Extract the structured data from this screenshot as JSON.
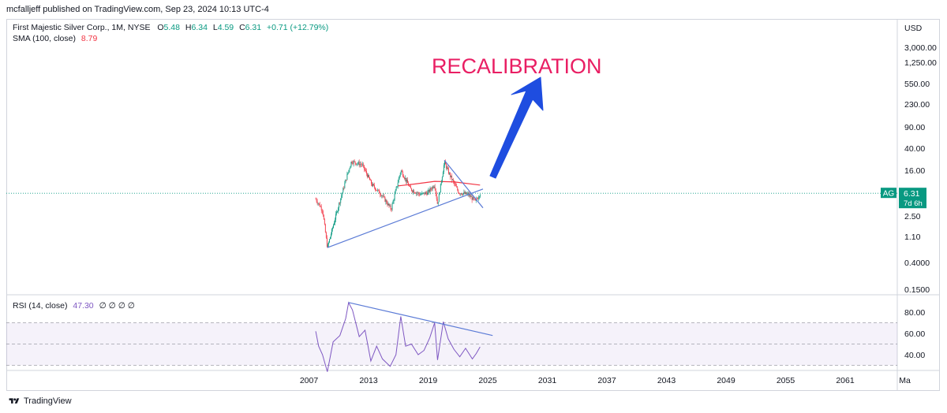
{
  "publisher": "mcfalljeff published on TradingView.com, Sep 23, 2024 10:13 UTC-4",
  "footer": {
    "brand": "TradingView",
    "logo_icon": "tradingview-logo-icon"
  },
  "legend": {
    "symbol": "First Majestic Silver Corp., 1M, NYSE",
    "o_label": "O",
    "o_val": "5.48",
    "h_label": "H",
    "h_val": "6.34",
    "l_label": "L",
    "l_val": "4.59",
    "c_label": "C",
    "c_val": "6.31",
    "change": "+0.71 (+12.79%)",
    "sma_label": "SMA (100, close)",
    "sma_val": "8.79",
    "rsi_label": "RSI (14, close)",
    "rsi_val": "47.30",
    "rsi_extra": "∅ ∅ ∅ ∅"
  },
  "annotation": {
    "text": "RECALIBRATION",
    "arrow_icon": "arrow-up-right-icon"
  },
  "price_tag": {
    "symbol": "AG",
    "price": "6.31",
    "countdown": "7d 6h"
  },
  "colors": {
    "up": "#089981",
    "down": "#f23645",
    "sma": "#f23645",
    "rsi": "#7e57c2",
    "trendline": "#5b7bd6",
    "arrow": "#1e4de0",
    "annotation": "#e91e63",
    "axis_text": "#131722",
    "grid": "#d1d4dc"
  },
  "chart_data": {
    "type": "candlestick",
    "price_axis": {
      "currency": "USD",
      "scale": "log",
      "ticks": [
        "3,000.00",
        "1,250.00",
        "550.00",
        "230.00",
        "90.00",
        "40.00",
        "16.00",
        "2.50",
        "1.10",
        "0.4000",
        "0.1500"
      ]
    },
    "time_axis": {
      "ticks": [
        "2007",
        "2013",
        "2019",
        "2025",
        "2031",
        "2037",
        "2043",
        "2049",
        "2055",
        "2061",
        "Ma"
      ]
    },
    "series_anchor_points": [
      {
        "date": "2007.7",
        "close": 5.0
      },
      {
        "date": "2008.4",
        "close": 3.2
      },
      {
        "date": "2008.9",
        "close": 0.7
      },
      {
        "date": "2010.0",
        "close": 3.5
      },
      {
        "date": "2011.0",
        "close": 14.0
      },
      {
        "date": "2011.4",
        "close": 23.0
      },
      {
        "date": "2012.5",
        "close": 20.0
      },
      {
        "date": "2013.5",
        "close": 9.0
      },
      {
        "date": "2014.5",
        "close": 6.0
      },
      {
        "date": "2015.5",
        "close": 3.3
      },
      {
        "date": "2016.5",
        "close": 16.0
      },
      {
        "date": "2017.5",
        "close": 7.5
      },
      {
        "date": "2018.5",
        "close": 6.0
      },
      {
        "date": "2019.3",
        "close": 6.5
      },
      {
        "date": "2020.0",
        "close": 9.0
      },
      {
        "date": "2020.3",
        "close": 4.0
      },
      {
        "date": "2021.0",
        "close": 22.0
      },
      {
        "date": "2021.5",
        "close": 14.0
      },
      {
        "date": "2022.5",
        "close": 6.5
      },
      {
        "date": "2023.5",
        "close": 6.0
      },
      {
        "date": "2024.2",
        "close": 4.5
      },
      {
        "date": "2024.7",
        "close": 6.31
      }
    ],
    "sma_100": [
      {
        "date": "2016.2",
        "value": 8.5
      },
      {
        "date": "2018.0",
        "value": 9.2
      },
      {
        "date": "2020.0",
        "value": 10.2
      },
      {
        "date": "2022.0",
        "value": 10.0
      },
      {
        "date": "2024.7",
        "value": 8.79
      }
    ],
    "trendlines": [
      {
        "from": {
          "date": "2008.9",
          "value": 0.7
        },
        "to": {
          "date": "2025.0",
          "value": 7.5
        }
      },
      {
        "from": {
          "date": "2021.0",
          "value": 24.0
        },
        "to": {
          "date": "2025.0",
          "value": 3.5
        }
      }
    ],
    "rsi": {
      "axis_ticks": [
        "80.00",
        "60.00",
        "40.00"
      ],
      "levels": [
        70,
        50,
        30
      ],
      "values": [
        {
          "date": "2007.7",
          "value": 62
        },
        {
          "date": "2008.0",
          "value": 48
        },
        {
          "date": "2008.4",
          "value": 40
        },
        {
          "date": "2008.9",
          "value": 24
        },
        {
          "date": "2009.5",
          "value": 52
        },
        {
          "date": "2010.2",
          "value": 58
        },
        {
          "date": "2010.8",
          "value": 74
        },
        {
          "date": "2011.1",
          "value": 89
        },
        {
          "date": "2011.5",
          "value": 82
        },
        {
          "date": "2012.2",
          "value": 57
        },
        {
          "date": "2012.8",
          "value": 63
        },
        {
          "date": "2013.4",
          "value": 34
        },
        {
          "date": "2014.0",
          "value": 48
        },
        {
          "date": "2014.6",
          "value": 36
        },
        {
          "date": "2015.4",
          "value": 29
        },
        {
          "date": "2016.0",
          "value": 40
        },
        {
          "date": "2016.5",
          "value": 76
        },
        {
          "date": "2017.0",
          "value": 48
        },
        {
          "date": "2017.6",
          "value": 50
        },
        {
          "date": "2018.3",
          "value": 40
        },
        {
          "date": "2018.9",
          "value": 44
        },
        {
          "date": "2019.5",
          "value": 56
        },
        {
          "date": "2020.0",
          "value": 70
        },
        {
          "date": "2020.3",
          "value": 35
        },
        {
          "date": "2020.9",
          "value": 71
        },
        {
          "date": "2021.4",
          "value": 55
        },
        {
          "date": "2022.0",
          "value": 45
        },
        {
          "date": "2022.6",
          "value": 38
        },
        {
          "date": "2023.2",
          "value": 46
        },
        {
          "date": "2023.9",
          "value": 36
        },
        {
          "date": "2024.3",
          "value": 41
        },
        {
          "date": "2024.7",
          "value": 47.3
        }
      ],
      "trendline": {
        "from": {
          "date": "2011.1",
          "value": 89
        },
        "to": {
          "date": "2026.0",
          "value": 58
        }
      }
    }
  }
}
